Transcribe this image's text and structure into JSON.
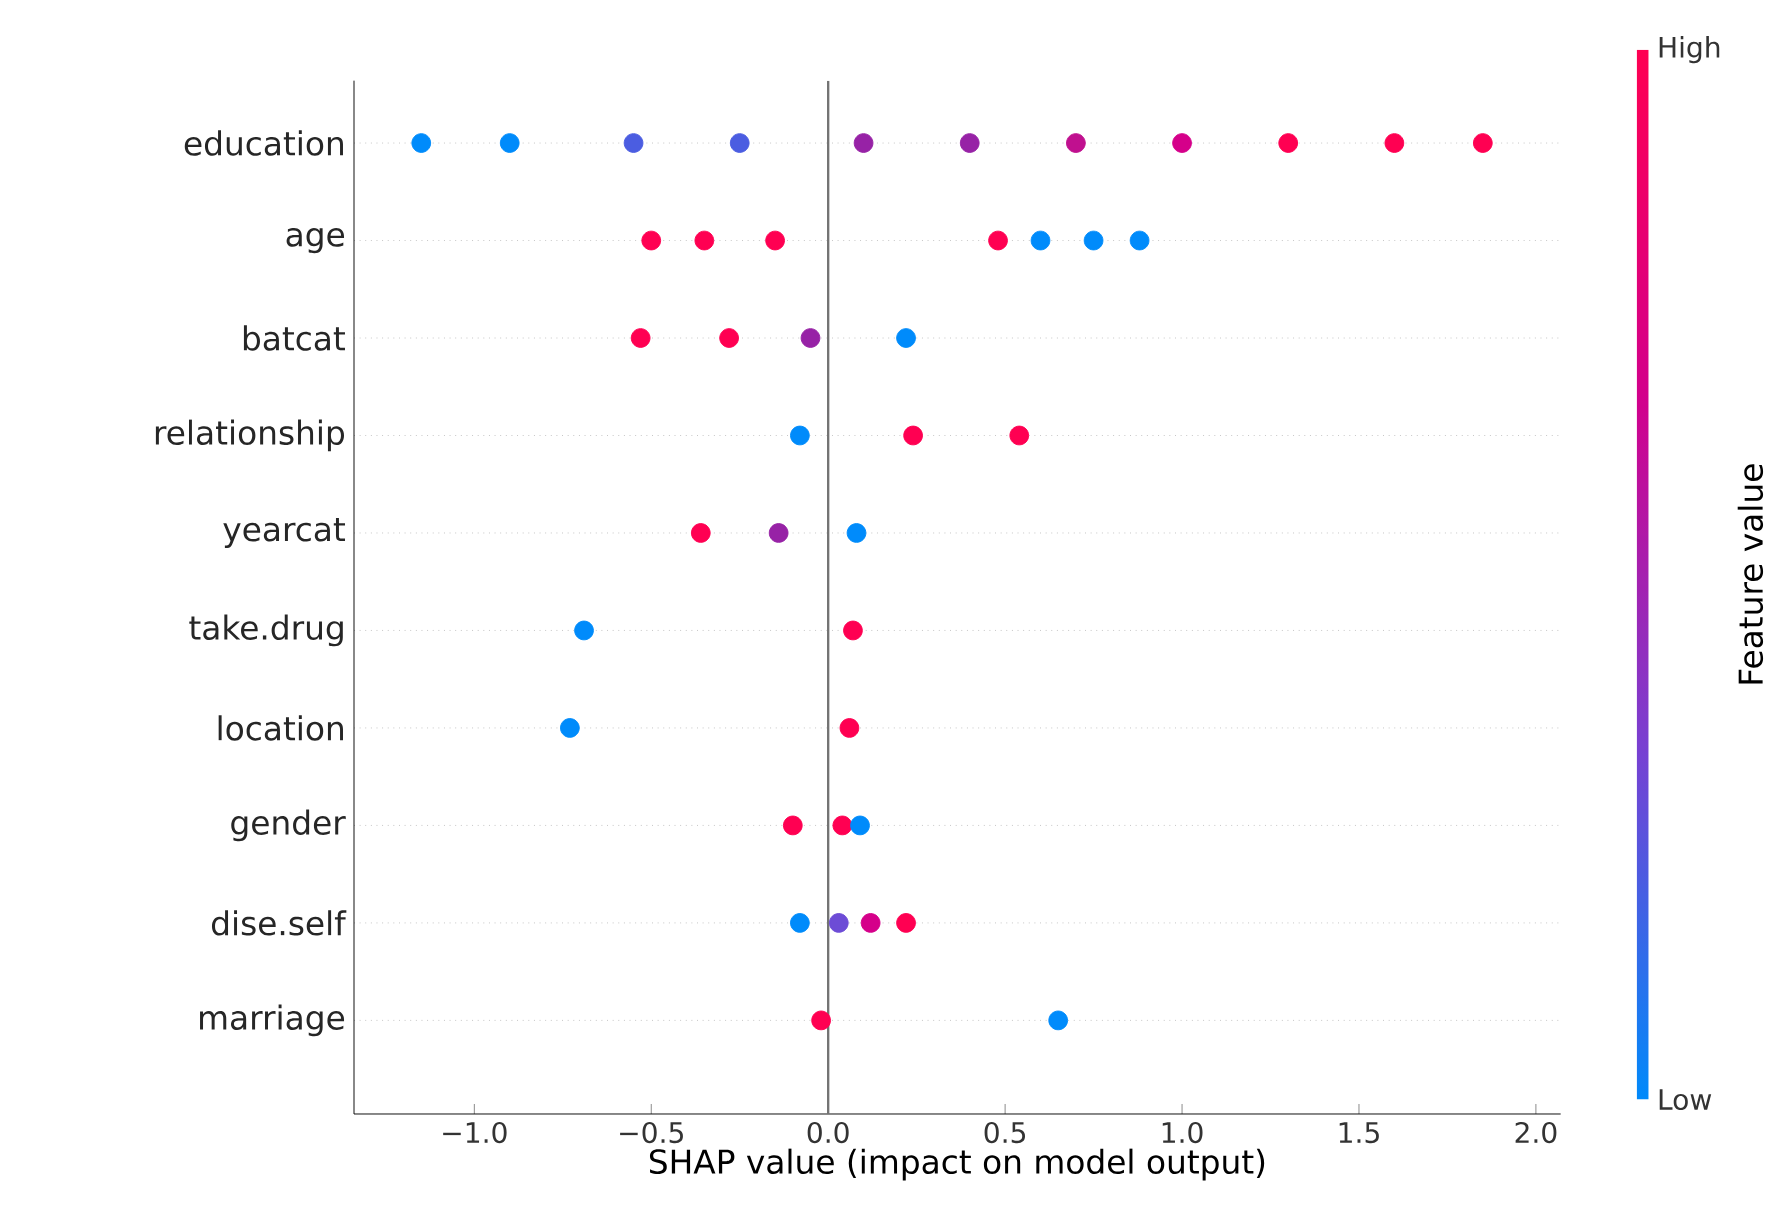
{
  "chart_data": {
    "type": "scatter",
    "orientation": "horizontal",
    "xlabel": "SHAP value (impact on model output)",
    "clabel": "Feature value",
    "categories": [
      "education",
      "age",
      "batcat",
      "relationship",
      "yearcat",
      "take.drug",
      "location",
      "gender",
      "dise.self",
      "marriage"
    ],
    "series": [
      {
        "values": [
          -1.15,
          -0.5,
          -0.53,
          -0.08,
          -0.36,
          -0.69,
          -0.73,
          -0.1,
          -0.08,
          -0.02
        ],
        "colors": [
          "#008bfb",
          "#ff0052",
          "#ff0052",
          "#008bfb",
          "#ff0052",
          "#008bfb",
          "#008bfb",
          "#ff0052",
          "#008bfb",
          "#ff0052"
        ]
      },
      {
        "values": [
          -0.9,
          -0.35,
          -0.28,
          0.24,
          -0.14,
          0.07,
          0.06,
          0.04,
          0.03,
          0.65
        ],
        "colors": [
          "#008bfb",
          "#ff0052",
          "#ff0052",
          "#ff0052",
          "#9722a6",
          "#ff0052",
          "#ff0052",
          "#ff0052",
          "#6d4cd6",
          "#008bfb"
        ]
      },
      {
        "values": [
          -0.55,
          -0.15,
          -0.05,
          0.54,
          0.08,
          null,
          null,
          0.09,
          0.12,
          null
        ],
        "colors": [
          "#4b5de1",
          "#ff0052",
          "#9722a6",
          "#ff0052",
          "#008bfb",
          null,
          null,
          "#008bfb",
          "#d5008a",
          null
        ]
      },
      {
        "values": [
          -0.25,
          0.48,
          0.22,
          null,
          null,
          null,
          null,
          null,
          0.22,
          null
        ],
        "colors": [
          "#4b5de1",
          "#ff0052",
          "#008bfb",
          null,
          null,
          null,
          null,
          null,
          "#ff0052",
          null
        ]
      },
      {
        "values": [
          0.1,
          0.6,
          null,
          null,
          null,
          null,
          null,
          null,
          null,
          null
        ],
        "colors": [
          "#9722a6",
          "#008bfb",
          null,
          null,
          null,
          null,
          null,
          null,
          null,
          null
        ]
      },
      {
        "values": [
          0.4,
          0.75,
          null,
          null,
          null,
          null,
          null,
          null,
          null,
          null
        ],
        "colors": [
          "#9722a6",
          "#008bfb",
          null,
          null,
          null,
          null,
          null,
          null,
          null,
          null
        ]
      },
      {
        "values": [
          0.7,
          0.88,
          null,
          null,
          null,
          null,
          null,
          null,
          null,
          null
        ],
        "colors": [
          "#c0108f",
          "#008bfb",
          null,
          null,
          null,
          null,
          null,
          null,
          null,
          null
        ]
      },
      {
        "values": [
          1.0,
          null,
          null,
          null,
          null,
          null,
          null,
          null,
          null,
          null
        ],
        "color": "#d5008a"
      },
      {
        "values": [
          1.3,
          null,
          null,
          null,
          null,
          null,
          null,
          null,
          null,
          null
        ],
        "color": "#ff0052"
      },
      {
        "values": [
          1.6,
          null,
          null,
          null,
          null,
          null,
          null,
          null,
          null,
          null
        ],
        "color": "#ff0052"
      },
      {
        "values": [
          1.85,
          null,
          null,
          null,
          null,
          null,
          null,
          null,
          null,
          null
        ],
        "color": "#ff0052"
      }
    ],
    "xlim": [
      -1.34,
      2.07
    ],
    "xticks": [
      {
        "value": -1.0,
        "label": "−1.0"
      },
      {
        "value": -0.5,
        "label": "−0.5"
      },
      {
        "value": 0.0,
        "label": "0.0"
      },
      {
        "value": 0.5,
        "label": "0.5"
      },
      {
        "value": 1.0,
        "label": "1.0"
      },
      {
        "value": 1.5,
        "label": "1.5"
      },
      {
        "value": 2.0,
        "label": "2.0"
      }
    ],
    "clim": [
      0,
      1
    ],
    "cticks": [
      {
        "value": 0,
        "label": "Low"
      },
      {
        "value": 1,
        "label": "High"
      }
    ],
    "ref_lines": [
      {
        "axis": "x",
        "value": 0
      }
    ],
    "grid": "y"
  }
}
